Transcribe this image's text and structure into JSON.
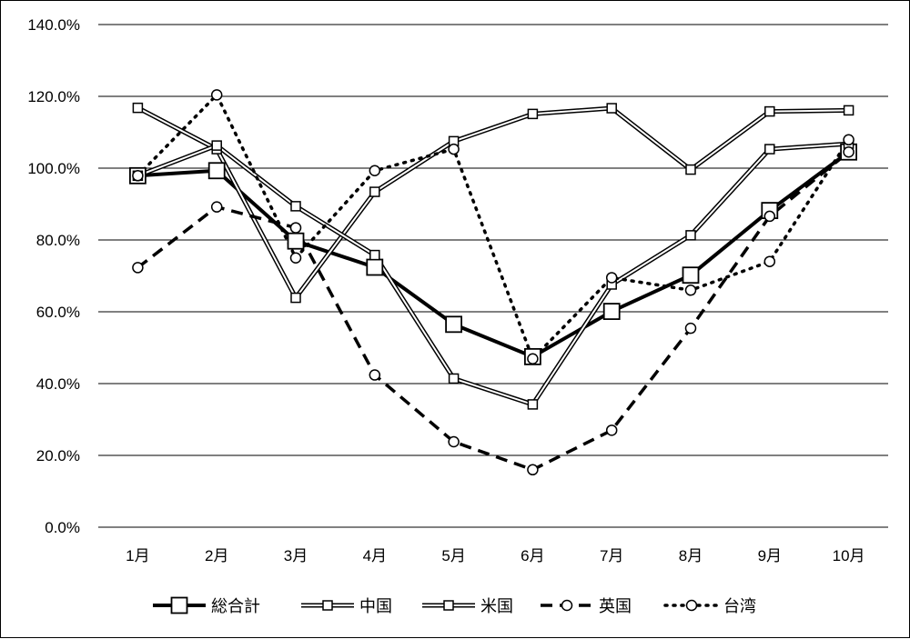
{
  "chart_data": {
    "type": "line",
    "title": "",
    "xlabel": "",
    "ylabel": "",
    "categories": [
      "1月",
      "2月",
      "3月",
      "4月",
      "5月",
      "6月",
      "7月",
      "8月",
      "9月",
      "10月"
    ],
    "ylim": [
      0,
      140
    ],
    "y_ticks": [
      0,
      20,
      40,
      60,
      80,
      100,
      120,
      140
    ],
    "y_tick_labels": [
      "0.0%",
      "20.0%",
      "40.0%",
      "60.0%",
      "80.0%",
      "100.0%",
      "120.0%",
      "140.0%"
    ],
    "grid": "horizontal",
    "legend_position": "bottom",
    "series": [
      {
        "name": "総合計",
        "values": [
          97.9,
          99.3,
          79.7,
          72.4,
          56.5,
          47.5,
          60.1,
          70.2,
          88.2,
          104.5
        ],
        "color": "#000000",
        "style": "bold-solid",
        "marker": "square-large"
      },
      {
        "name": "中国",
        "values": [
          116.8,
          105.3,
          63.9,
          93.4,
          107.5,
          115.1,
          116.7,
          99.6,
          115.8,
          116.1
        ],
        "color": "#000000",
        "style": "double",
        "marker": "square"
      },
      {
        "name": "米国",
        "values": [
          97.9,
          106.3,
          89.4,
          75.8,
          41.4,
          34.2,
          67.6,
          81.3,
          105.3,
          106.8
        ],
        "color": "#000000",
        "style": "double",
        "marker": "square"
      },
      {
        "name": "英国",
        "values": [
          72.3,
          89.2,
          83.4,
          42.4,
          23.8,
          16.0,
          27.0,
          55.4,
          86.6,
          104.5
        ],
        "color": "#000000",
        "style": "dashed",
        "marker": "circle"
      },
      {
        "name": "台湾",
        "values": [
          97.9,
          120.4,
          75.0,
          99.3,
          105.3,
          46.9,
          69.5,
          66.0,
          74.0,
          107.9
        ],
        "color": "#000000",
        "style": "dotted",
        "marker": "circle"
      }
    ]
  }
}
